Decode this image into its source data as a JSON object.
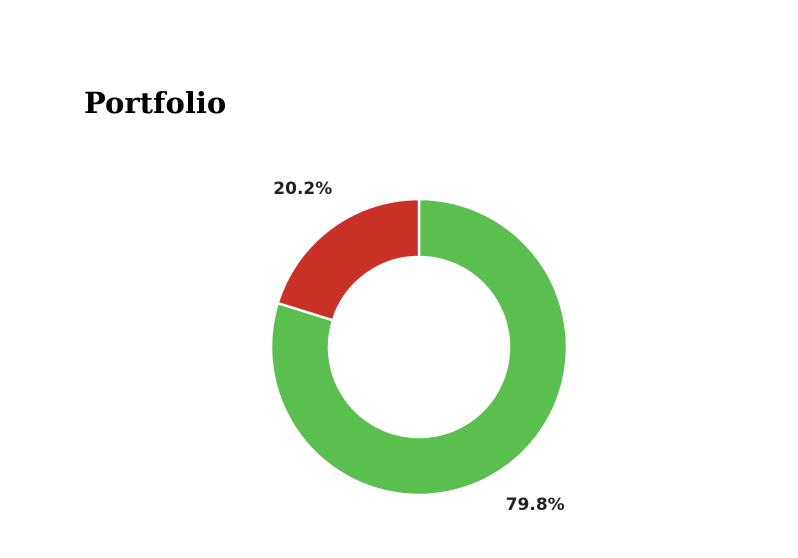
{
  "chart_data": {
    "type": "pie",
    "donut": true,
    "title": "Portfolio",
    "start": "top",
    "direction": "clockwise",
    "slices": [
      {
        "value": 79.8,
        "label": "79.8%",
        "color": "#5bbf4f"
      },
      {
        "value": 20.2,
        "label": "20.2%",
        "color": "#c93026"
      }
    ]
  }
}
